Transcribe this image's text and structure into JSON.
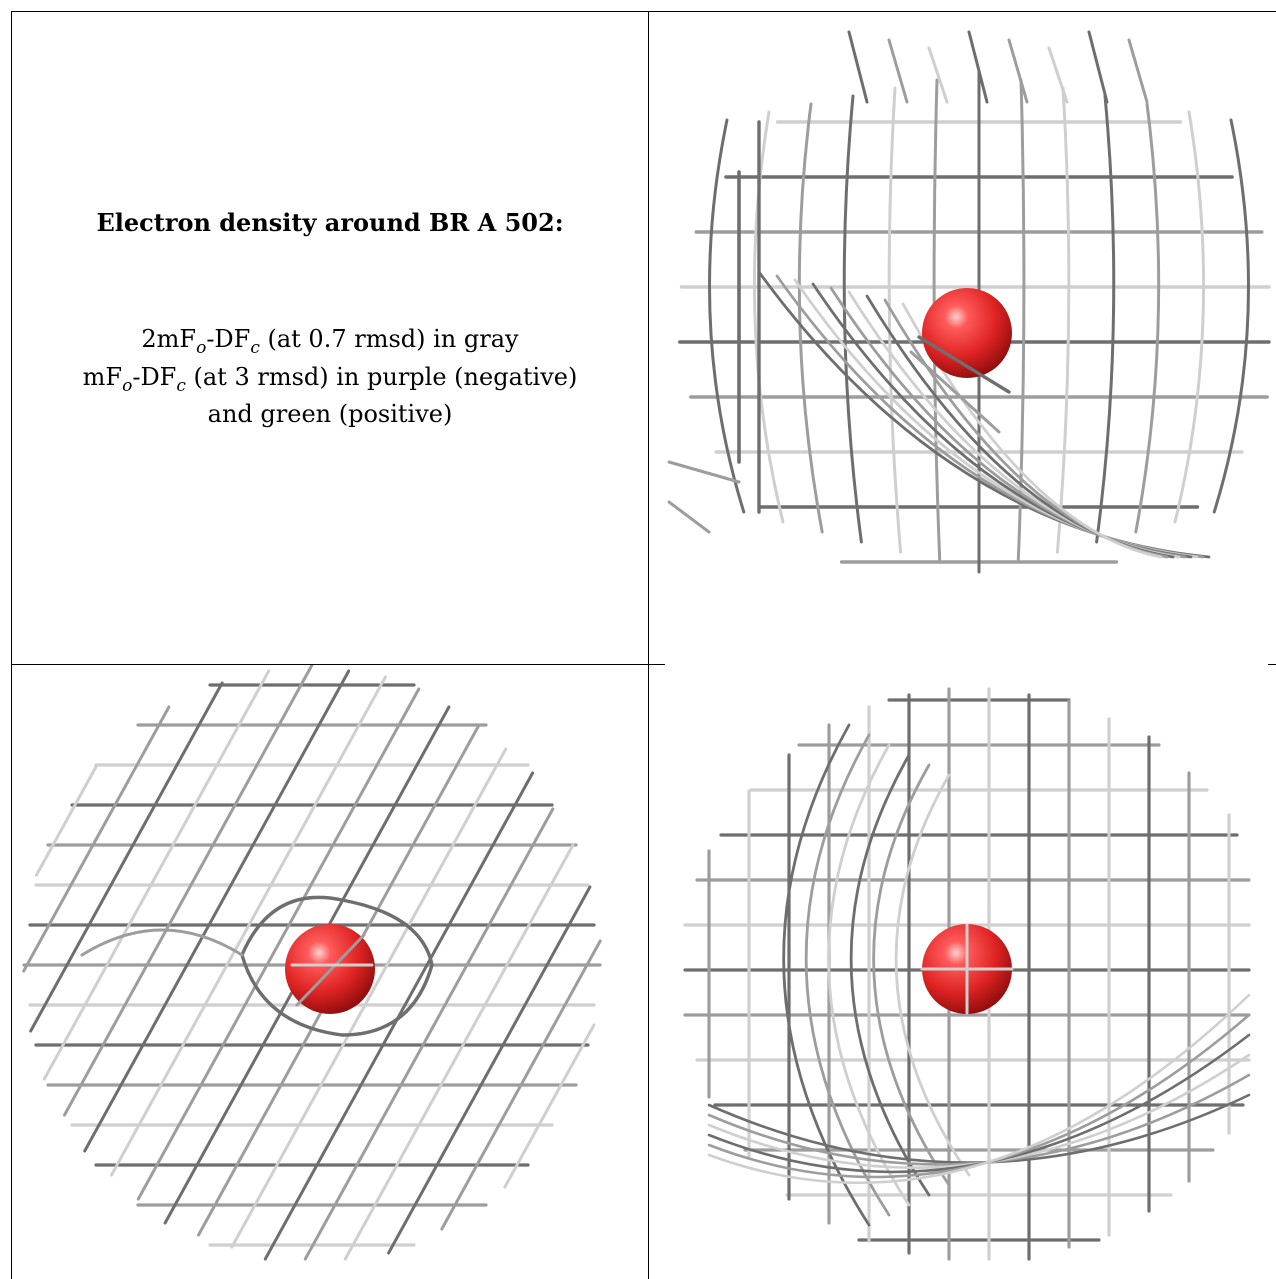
{
  "caption": {
    "heading": "Electron density around BR A 502:",
    "line1_pre": "2mF",
    "line1_sub1": "o",
    "line1_mid": "-DF",
    "line1_sub2": "c",
    "line1_post": " (at 0.7 rmsd) in gray",
    "line2_pre": "mF",
    "line2_sub1": "o",
    "line2_mid": "-DF",
    "line2_sub2": "c",
    "line2_post": " (at 3 rmsd) in purple (negative)",
    "line3": "and green (positive)"
  },
  "colors": {
    "mesh_dark": "#6e6e6e",
    "mesh_mid": "#9d9d9d",
    "mesh_light": "#cfcfcf",
    "atom": "#e02424",
    "border": "#000000"
  },
  "views": [
    {
      "name": "view-top-right",
      "atom": "BR"
    },
    {
      "name": "view-bottom-left",
      "atom": "BR"
    },
    {
      "name": "view-bottom-right",
      "atom": "BR"
    }
  ]
}
